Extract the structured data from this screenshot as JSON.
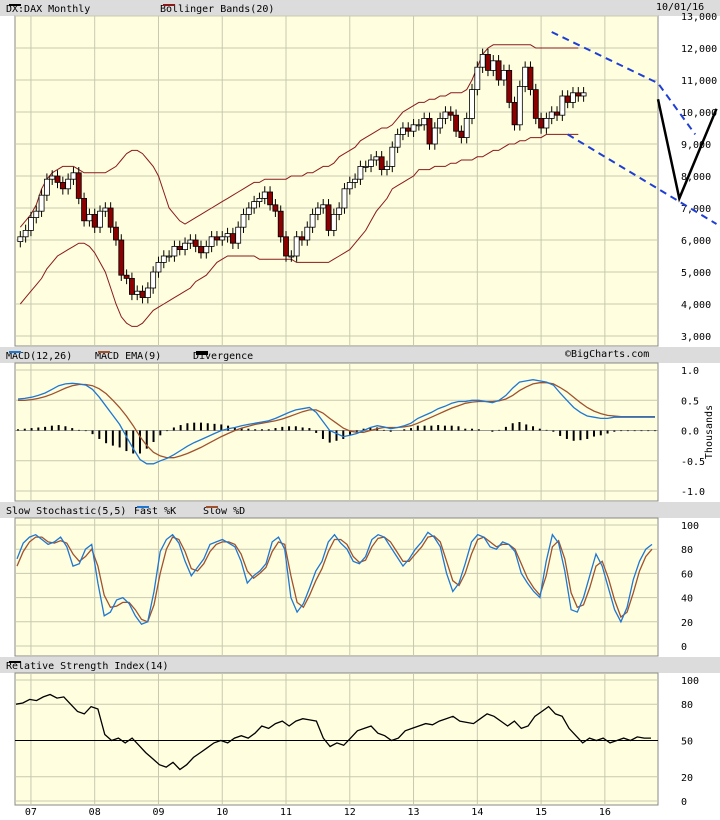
{
  "header": {
    "symbol": "DX:DAX Monthly",
    "overlay": "Bollinger Bands(20)",
    "date": "10/01/16"
  },
  "panels": {
    "macd_title": "MACD(12,26)",
    "macd_ema": "MACD EMA(9)",
    "macd_div": "Divergence",
    "brand": "©BigCharts.com",
    "stoch_title": "Slow Stochastic(5,5)",
    "stoch_fast": "Fast %K",
    "stoch_slow": "Slow %D",
    "rsi_title": "Relative Strength Index(14)",
    "macd_units": "Thousands"
  },
  "colors": {
    "price_up": "#ffffff",
    "price_down": "#8b0000",
    "band": "#8b1a1a",
    "macd": "#1e78d2",
    "signal": "#a0522d",
    "fast_k": "#1e78d2",
    "slow_d": "#a0522d",
    "channel": "#1f3fd4",
    "plot_bg": "#ffffe0"
  },
  "x_axis": {
    "labels": [
      "07",
      "08",
      "09",
      "10",
      "11",
      "12",
      "13",
      "14",
      "15",
      "16"
    ]
  },
  "chart_data": [
    {
      "type": "candlestick",
      "title": "DX:DAX Monthly",
      "ylim": [
        3000,
        13000
      ],
      "yticks": [
        "3,000",
        "4,000",
        "5,000",
        "6,000",
        "7,000",
        "8,000",
        "9,000",
        "10,000",
        "11,000",
        "12,000",
        "13,000"
      ],
      "x_range": [
        "2006-10",
        "2016-10"
      ],
      "close": [
        6100,
        6300,
        6700,
        6900,
        7400,
        7900,
        8000,
        7800,
        7600,
        7900,
        8100,
        7300,
        6600,
        6800,
        6400,
        6900,
        7000,
        6400,
        6000,
        4900,
        4800,
        4300,
        4400,
        4200,
        4500,
        5000,
        5300,
        5500,
        5500,
        5800,
        5700,
        5900,
        6000,
        5800,
        5600,
        5800,
        6100,
        6000,
        6100,
        6200,
        5900,
        6400,
        6800,
        7000,
        7200,
        7300,
        7500,
        7100,
        6900,
        6100,
        5500,
        5500,
        6100,
        6000,
        6400,
        6800,
        7000,
        7100,
        6300,
        6800,
        7000,
        7600,
        7800,
        7900,
        8300,
        8300,
        8500,
        8600,
        8200,
        8300,
        8900,
        9300,
        9500,
        9400,
        9600,
        9600,
        9800,
        9000,
        9500,
        9800,
        10000,
        9900,
        9400,
        9200,
        9800,
        10700,
        11400,
        11800,
        11300,
        11600,
        11000,
        11300,
        10300,
        9600,
        10800,
        11400,
        10700,
        9800,
        9500,
        9800,
        10000,
        9900,
        10500,
        10300,
        10600,
        10500,
        10600
      ],
      "bollinger_upper": [
        6400,
        6600,
        6800,
        7100,
        7600,
        7900,
        8100,
        8200,
        8300,
        8300,
        8300,
        8200,
        8100,
        8100,
        8100,
        8100,
        8100,
        8200,
        8300,
        8500,
        8700,
        8800,
        8800,
        8700,
        8500,
        8300,
        8000,
        7500,
        7000,
        6800,
        6600,
        6500,
        6600,
        6700,
        6800,
        6900,
        7000,
        7100,
        7200,
        7300,
        7400,
        7500,
        7600,
        7700,
        7800,
        7800,
        7900,
        7900,
        7900,
        7900,
        7900,
        8000,
        8000,
        8000,
        8100,
        8100,
        8200,
        8300,
        8300,
        8400,
        8600,
        8700,
        8800,
        8900,
        9100,
        9200,
        9300,
        9400,
        9500,
        9500,
        9600,
        9800,
        10000,
        10100,
        10200,
        10300,
        10300,
        10400,
        10400,
        10500,
        10500,
        10600,
        10600,
        10600,
        10700,
        11000,
        11400,
        11800,
        12000,
        12100,
        12100,
        12100,
        12100,
        12100,
        12100,
        12100,
        12100,
        12000,
        12000,
        12000,
        12000,
        12000,
        12000,
        12000,
        12000,
        12000
      ],
      "bollinger_lower": [
        4000,
        4200,
        4400,
        4600,
        4800,
        5100,
        5300,
        5500,
        5600,
        5700,
        5800,
        5900,
        5900,
        5800,
        5600,
        5300,
        5000,
        4500,
        4000,
        3600,
        3400,
        3300,
        3300,
        3400,
        3600,
        3800,
        3900,
        4000,
        4100,
        4200,
        4300,
        4400,
        4500,
        4700,
        4800,
        4900,
        5100,
        5300,
        5400,
        5500,
        5500,
        5500,
        5500,
        5500,
        5500,
        5400,
        5400,
        5400,
        5400,
        5400,
        5400,
        5400,
        5300,
        5300,
        5300,
        5300,
        5300,
        5300,
        5300,
        5400,
        5500,
        5600,
        5700,
        5900,
        6100,
        6300,
        6600,
        6900,
        7100,
        7300,
        7600,
        7700,
        7800,
        7900,
        8000,
        8200,
        8200,
        8200,
        8300,
        8300,
        8300,
        8400,
        8400,
        8500,
        8500,
        8500,
        8600,
        8600,
        8700,
        8800,
        8800,
        8900,
        9000,
        9000,
        9100,
        9100,
        9200,
        9200,
        9200,
        9300,
        9300,
        9300,
        9300,
        9300,
        9300,
        9300
      ],
      "channel": {
        "upper": [
          [
            "2015-03",
            12500
          ],
          [
            "2016-11",
            10900
          ],
          [
            "2017-06",
            9300
          ]
        ],
        "lower": [
          [
            "2015-06",
            9300
          ],
          [
            "2017-10",
            6500
          ]
        ]
      },
      "projection": [
        [
          "2016-11",
          10400
        ],
        [
          "2017-03",
          7300
        ],
        [
          "2017-10",
          10100
        ]
      ]
    },
    {
      "type": "line",
      "title": "MACD(12,26)",
      "ylabel": "Thousands",
      "ylim": [
        -1.0,
        1.0
      ],
      "yticks": [
        "1.0",
        "0.5",
        "0.0",
        "-0.5",
        "-1.0"
      ],
      "series": [
        {
          "name": "MACD(12,26)",
          "values": [
            0.52,
            0.53,
            0.55,
            0.58,
            0.62,
            0.68,
            0.74,
            0.77,
            0.78,
            0.77,
            0.75,
            0.68,
            0.55,
            0.4,
            0.25,
            0.1,
            -0.1,
            -0.3,
            -0.48,
            -0.55,
            -0.55,
            -0.5,
            -0.46,
            -0.4,
            -0.33,
            -0.26,
            -0.2,
            -0.15,
            -0.1,
            -0.05,
            0.0,
            0.03,
            0.05,
            0.08,
            0.1,
            0.12,
            0.14,
            0.16,
            0.2,
            0.25,
            0.3,
            0.34,
            0.36,
            0.38,
            0.3,
            0.15,
            0.0,
            -0.05,
            -0.1,
            -0.08,
            -0.05,
            0.0,
            0.05,
            0.08,
            0.06,
            0.03,
            0.05,
            0.08,
            0.12,
            0.2,
            0.25,
            0.3,
            0.36,
            0.4,
            0.45,
            0.48,
            0.48,
            0.5,
            0.5,
            0.48,
            0.46,
            0.5,
            0.58,
            0.7,
            0.8,
            0.82,
            0.84,
            0.82,
            0.8,
            0.75,
            0.62,
            0.5,
            0.38,
            0.3,
            0.24,
            0.22,
            0.2,
            0.2,
            0.22,
            0.22,
            0.22,
            0.22,
            0.22,
            0.22,
            0.22
          ]
        },
        {
          "name": "MACD EMA(9)",
          "values": [
            0.5,
            0.5,
            0.51,
            0.53,
            0.56,
            0.6,
            0.65,
            0.7,
            0.74,
            0.76,
            0.76,
            0.74,
            0.69,
            0.61,
            0.5,
            0.38,
            0.24,
            0.08,
            -0.1,
            -0.25,
            -0.36,
            -0.42,
            -0.45,
            -0.45,
            -0.42,
            -0.38,
            -0.33,
            -0.28,
            -0.22,
            -0.16,
            -0.1,
            -0.05,
            0.0,
            0.04,
            0.07,
            0.1,
            0.12,
            0.14,
            0.16,
            0.19,
            0.23,
            0.27,
            0.31,
            0.34,
            0.34,
            0.29,
            0.2,
            0.12,
            0.04,
            -0.01,
            -0.03,
            -0.03,
            0.0,
            0.03,
            0.05,
            0.05,
            0.05,
            0.06,
            0.08,
            0.12,
            0.17,
            0.22,
            0.27,
            0.32,
            0.37,
            0.41,
            0.45,
            0.47,
            0.48,
            0.48,
            0.48,
            0.49,
            0.52,
            0.58,
            0.66,
            0.72,
            0.77,
            0.79,
            0.79,
            0.77,
            0.71,
            0.64,
            0.55,
            0.46,
            0.38,
            0.32,
            0.28,
            0.25,
            0.24,
            0.23,
            0.23,
            0.23,
            0.23,
            0.23,
            0.23
          ]
        }
      ],
      "divergence": [
        0.02,
        0.03,
        0.04,
        0.05,
        0.06,
        0.08,
        0.09,
        0.07,
        0.04,
        0.01,
        -0.01,
        -0.06,
        -0.14,
        -0.21,
        -0.25,
        -0.28,
        -0.34,
        -0.38,
        -0.38,
        -0.3,
        -0.19,
        -0.08,
        -0.01,
        0.05,
        0.09,
        0.12,
        0.13,
        0.13,
        0.12,
        0.11,
        0.1,
        0.08,
        0.05,
        0.04,
        0.03,
        0.02,
        0.02,
        0.02,
        0.04,
        0.06,
        0.07,
        0.07,
        0.05,
        0.04,
        -0.04,
        -0.14,
        -0.2,
        -0.17,
        -0.14,
        -0.07,
        -0.02,
        0.03,
        0.05,
        0.05,
        0.01,
        -0.02,
        0.0,
        0.02,
        0.04,
        0.08,
        0.08,
        0.08,
        0.09,
        0.08,
        0.08,
        0.07,
        0.03,
        0.03,
        0.02,
        0.0,
        -0.02,
        0.01,
        0.06,
        0.12,
        0.14,
        0.1,
        0.07,
        0.03,
        0.01,
        -0.02,
        -0.09,
        -0.14,
        -0.17,
        -0.16,
        -0.14,
        -0.1,
        -0.08,
        -0.05,
        -0.02,
        -0.01,
        -0.01,
        -0.01,
        -0.01,
        -0.01,
        -0.01
      ]
    },
    {
      "type": "line",
      "title": "Slow Stochastic(5,5)",
      "ylim": [
        0,
        100
      ],
      "yticks": [
        "100",
        "80",
        "60",
        "40",
        "20",
        "0"
      ],
      "series": [
        {
          "name": "Fast %K",
          "values": [
            72,
            85,
            90,
            92,
            88,
            84,
            86,
            90,
            82,
            66,
            68,
            80,
            84,
            52,
            25,
            28,
            38,
            40,
            35,
            25,
            18,
            20,
            45,
            78,
            88,
            92,
            85,
            70,
            58,
            65,
            72,
            84,
            86,
            88,
            85,
            82,
            70,
            52,
            58,
            62,
            68,
            86,
            90,
            80,
            40,
            28,
            35,
            48,
            62,
            70,
            86,
            92,
            85,
            80,
            70,
            68,
            74,
            88,
            92,
            90,
            82,
            74,
            66,
            72,
            80,
            86,
            94,
            90,
            82,
            60,
            45,
            52,
            68,
            86,
            92,
            90,
            82,
            80,
            86,
            84,
            78,
            60,
            52,
            45,
            40,
            70,
            92,
            85,
            62,
            30,
            28,
            40,
            58,
            76,
            66,
            48,
            30,
            20,
            32,
            55,
            70,
            80,
            84
          ]
        },
        {
          "name": "Slow %D",
          "values": [
            66,
            78,
            86,
            90,
            90,
            86,
            85,
            87,
            85,
            76,
            70,
            74,
            80,
            66,
            42,
            32,
            33,
            36,
            36,
            30,
            22,
            20,
            34,
            60,
            80,
            90,
            88,
            78,
            64,
            62,
            68,
            78,
            84,
            86,
            86,
            84,
            76,
            62,
            56,
            60,
            65,
            78,
            86,
            84,
            58,
            36,
            32,
            42,
            54,
            64,
            78,
            88,
            88,
            84,
            74,
            69,
            71,
            82,
            89,
            90,
            86,
            78,
            70,
            70,
            76,
            82,
            90,
            91,
            86,
            70,
            54,
            50,
            60,
            76,
            88,
            90,
            86,
            82,
            84,
            84,
            80,
            68,
            56,
            48,
            42,
            58,
            82,
            87,
            72,
            44,
            32,
            34,
            48,
            66,
            70,
            56,
            38,
            24,
            28,
            44,
            62,
            74,
            80
          ]
        }
      ]
    },
    {
      "type": "line",
      "title": "Relative Strength Index(14)",
      "ylim": [
        0,
        100
      ],
      "yticks": [
        "100",
        "80",
        "50",
        "20",
        "0"
      ],
      "reference": 50,
      "series": [
        {
          "name": "Relative Strength Index(14)",
          "values": [
            80,
            81,
            84,
            83,
            86,
            88,
            85,
            86,
            80,
            74,
            72,
            78,
            76,
            55,
            50,
            52,
            48,
            52,
            46,
            40,
            35,
            30,
            28,
            32,
            26,
            30,
            36,
            40,
            44,
            48,
            50,
            48,
            52,
            54,
            52,
            56,
            62,
            60,
            64,
            66,
            62,
            66,
            68,
            67,
            66,
            52,
            45,
            48,
            46,
            52,
            58,
            60,
            62,
            56,
            54,
            50,
            52,
            58,
            60,
            62,
            64,
            63,
            66,
            68,
            70,
            66,
            65,
            64,
            68,
            72,
            70,
            66,
            62,
            66,
            60,
            62,
            70,
            74,
            78,
            72,
            70,
            60,
            54,
            48,
            52,
            50,
            52,
            48,
            50,
            52,
            50,
            53,
            52,
            52
          ]
        }
      ]
    }
  ]
}
